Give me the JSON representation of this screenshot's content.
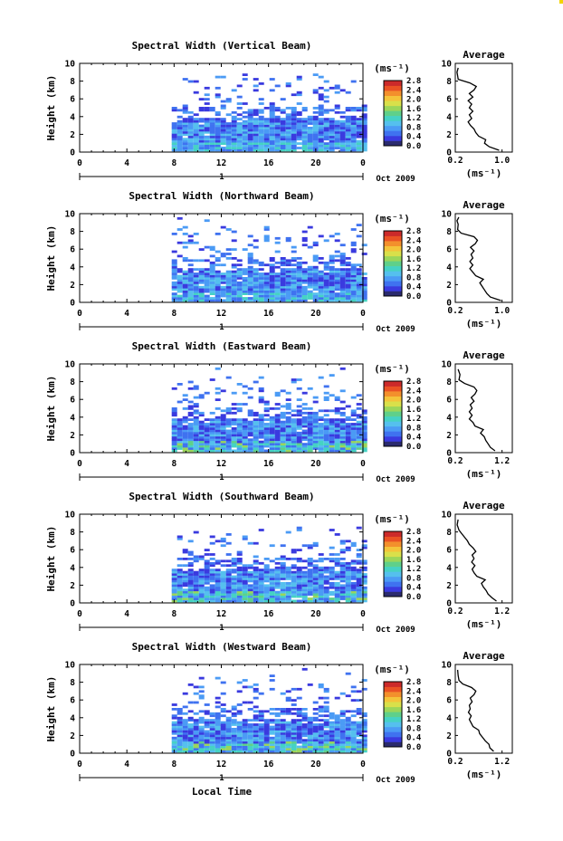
{
  "figure": {
    "xlabel": "Local Time",
    "date_label": "Oct 2009"
  },
  "chart_data": [
    {
      "type": "heatmap",
      "title": "Spectral Width (Vertical Beam)",
      "ylabel": "Height (km)",
      "x_ticks": [
        "0",
        "4",
        "8",
        "12",
        "16",
        "20",
        "0"
      ],
      "y_ticks": [
        "0",
        "2",
        "4",
        "6",
        "8",
        "10"
      ],
      "xlim": [
        0,
        24
      ],
      "ylim": [
        0,
        10
      ],
      "day_label": "1",
      "colorbar": {
        "unit": "(ms⁻¹)",
        "ticks": [
          "0.0",
          "0.4",
          "0.8",
          "1.2",
          "1.6",
          "2.0",
          "2.4",
          "2.8"
        ]
      },
      "average_profile": {
        "title": "Average",
        "xlabel": "(ms⁻¹)",
        "x_ticks": [
          "0.2",
          "1.0"
        ],
        "xlim": [
          0.2,
          1.0
        ],
        "x_tick_values": [
          0.2,
          1.0
        ],
        "y_ticks": [
          "0",
          "2",
          "4",
          "6",
          "8",
          "10"
        ],
        "ylim": [
          0,
          10
        ],
        "points": [
          [
            0.95,
            0.2
          ],
          [
            0.78,
            0.6
          ],
          [
            0.7,
            1.0
          ],
          [
            0.72,
            1.4
          ],
          [
            0.6,
            1.8
          ],
          [
            0.55,
            2.2
          ],
          [
            0.52,
            2.6
          ],
          [
            0.46,
            3.0
          ],
          [
            0.42,
            3.4
          ],
          [
            0.48,
            3.8
          ],
          [
            0.44,
            4.2
          ],
          [
            0.5,
            4.6
          ],
          [
            0.44,
            5.0
          ],
          [
            0.48,
            5.4
          ],
          [
            0.42,
            5.8
          ],
          [
            0.5,
            6.2
          ],
          [
            0.44,
            6.6
          ],
          [
            0.52,
            7.0
          ],
          [
            0.56,
            7.4
          ],
          [
            0.45,
            7.8
          ],
          [
            0.25,
            8.2
          ],
          [
            0.24,
            8.6
          ],
          [
            0.23,
            9.0
          ],
          [
            0.25,
            9.5
          ]
        ]
      }
    },
    {
      "type": "heatmap",
      "title": "Spectral Width (Northward Beam)",
      "ylabel": "Height (km)",
      "x_ticks": [
        "0",
        "4",
        "8",
        "12",
        "16",
        "20",
        "0"
      ],
      "y_ticks": [
        "0",
        "2",
        "4",
        "6",
        "8",
        "10"
      ],
      "xlim": [
        0,
        24
      ],
      "ylim": [
        0,
        10
      ],
      "day_label": "1",
      "colorbar": {
        "unit": "(ms⁻¹)",
        "ticks": [
          "0.0",
          "0.4",
          "0.8",
          "1.2",
          "1.6",
          "2.0",
          "2.4",
          "2.8"
        ]
      },
      "average_profile": {
        "title": "Average",
        "xlabel": "(ms⁻¹)",
        "x_ticks": [
          "0.2",
          "1.0"
        ],
        "xlim": [
          0.2,
          1.0
        ],
        "x_tick_values": [
          0.2,
          1.0
        ],
        "y_ticks": [
          "0",
          "2",
          "4",
          "6",
          "8",
          "10"
        ],
        "ylim": [
          0,
          10
        ],
        "points": [
          [
            0.98,
            0.2
          ],
          [
            0.8,
            0.6
          ],
          [
            0.74,
            1.0
          ],
          [
            0.7,
            1.4
          ],
          [
            0.66,
            1.8
          ],
          [
            0.62,
            2.2
          ],
          [
            0.68,
            2.6
          ],
          [
            0.55,
            3.0
          ],
          [
            0.5,
            3.4
          ],
          [
            0.45,
            3.8
          ],
          [
            0.5,
            4.2
          ],
          [
            0.45,
            4.6
          ],
          [
            0.5,
            5.0
          ],
          [
            0.47,
            5.4
          ],
          [
            0.52,
            5.8
          ],
          [
            0.46,
            6.2
          ],
          [
            0.54,
            6.6
          ],
          [
            0.58,
            7.0
          ],
          [
            0.52,
            7.4
          ],
          [
            0.3,
            7.8
          ],
          [
            0.24,
            8.2
          ],
          [
            0.25,
            8.8
          ],
          [
            0.23,
            9.2
          ],
          [
            0.26,
            9.6
          ]
        ]
      }
    },
    {
      "type": "heatmap",
      "title": "Spectral Width (Eastward Beam)",
      "ylabel": "Height (km)",
      "x_ticks": [
        "0",
        "4",
        "8",
        "12",
        "16",
        "20",
        "0"
      ],
      "y_ticks": [
        "0",
        "2",
        "4",
        "6",
        "8",
        "10"
      ],
      "xlim": [
        0,
        24
      ],
      "ylim": [
        0,
        10
      ],
      "day_label": "1",
      "colorbar": {
        "unit": "(ms⁻¹)",
        "ticks": [
          "0.0",
          "0.4",
          "0.8",
          "1.2",
          "1.6",
          "2.0",
          "2.4",
          "2.8"
        ]
      },
      "average_profile": {
        "title": "Average",
        "xlabel": "(ms⁻¹)",
        "x_ticks": [
          "0.2",
          "1.2"
        ],
        "xlim": [
          0.2,
          1.2
        ],
        "x_tick_values": [
          0.2,
          1.2
        ],
        "y_ticks": [
          "0",
          "2",
          "4",
          "6",
          "8",
          "10"
        ],
        "ylim": [
          0,
          10
        ],
        "points": [
          [
            1.05,
            0.2
          ],
          [
            0.95,
            0.6
          ],
          [
            0.9,
            1.0
          ],
          [
            0.85,
            1.4
          ],
          [
            0.82,
            1.8
          ],
          [
            0.74,
            2.2
          ],
          [
            0.8,
            2.6
          ],
          [
            0.62,
            3.0
          ],
          [
            0.58,
            3.4
          ],
          [
            0.5,
            3.8
          ],
          [
            0.56,
            4.2
          ],
          [
            0.5,
            4.6
          ],
          [
            0.56,
            5.0
          ],
          [
            0.52,
            5.4
          ],
          [
            0.6,
            5.8
          ],
          [
            0.54,
            6.2
          ],
          [
            0.62,
            6.6
          ],
          [
            0.66,
            7.0
          ],
          [
            0.6,
            7.4
          ],
          [
            0.4,
            7.8
          ],
          [
            0.28,
            8.2
          ],
          [
            0.3,
            8.8
          ],
          [
            0.26,
            9.4
          ]
        ]
      }
    },
    {
      "type": "heatmap",
      "title": "Spectral Width (Southward Beam)",
      "ylabel": "Height (km)",
      "x_ticks": [
        "0",
        "4",
        "8",
        "12",
        "16",
        "20",
        "0"
      ],
      "y_ticks": [
        "0",
        "2",
        "4",
        "6",
        "8",
        "10"
      ],
      "xlim": [
        0,
        24
      ],
      "ylim": [
        0,
        10
      ],
      "day_label": "1",
      "colorbar": {
        "unit": "(ms⁻¹)",
        "ticks": [
          "0.0",
          "0.4",
          "0.8",
          "1.2",
          "1.6",
          "2.0",
          "2.4",
          "2.8"
        ]
      },
      "average_profile": {
        "title": "Average",
        "xlabel": "(ms⁻¹)",
        "x_ticks": [
          "0.2",
          "1.2"
        ],
        "xlim": [
          0.2,
          1.2
        ],
        "x_tick_values": [
          0.2,
          1.2
        ],
        "y_ticks": [
          "0",
          "2",
          "4",
          "6",
          "8",
          "10"
        ],
        "ylim": [
          0,
          10
        ],
        "points": [
          [
            1.08,
            0.2
          ],
          [
            0.98,
            0.6
          ],
          [
            0.9,
            1.0
          ],
          [
            0.86,
            1.4
          ],
          [
            0.8,
            1.8
          ],
          [
            0.76,
            2.2
          ],
          [
            0.84,
            2.6
          ],
          [
            0.66,
            3.0
          ],
          [
            0.6,
            3.4
          ],
          [
            0.56,
            3.8
          ],
          [
            0.62,
            4.2
          ],
          [
            0.55,
            4.6
          ],
          [
            0.6,
            5.0
          ],
          [
            0.56,
            5.4
          ],
          [
            0.64,
            5.8
          ],
          [
            0.58,
            6.2
          ],
          [
            0.5,
            6.6
          ],
          [
            0.46,
            7.0
          ],
          [
            0.4,
            7.4
          ],
          [
            0.34,
            7.8
          ],
          [
            0.28,
            8.2
          ],
          [
            0.24,
            8.8
          ],
          [
            0.26,
            9.4
          ]
        ]
      }
    },
    {
      "type": "heatmap",
      "title": "Spectral Width (Westward Beam)",
      "ylabel": "Height (km)",
      "x_ticks": [
        "0",
        "4",
        "8",
        "12",
        "16",
        "20",
        "0"
      ],
      "y_ticks": [
        "0",
        "2",
        "4",
        "6",
        "8",
        "10"
      ],
      "xlim": [
        0,
        24
      ],
      "ylim": [
        0,
        10
      ],
      "day_label": "1",
      "colorbar": {
        "unit": "(ms⁻¹)",
        "ticks": [
          "0.0",
          "0.4",
          "0.8",
          "1.2",
          "1.6",
          "2.0",
          "2.4",
          "2.8"
        ]
      },
      "average_profile": {
        "title": "Average",
        "xlabel": "(ms⁻¹)",
        "x_ticks": [
          "0.2",
          "1.2"
        ],
        "xlim": [
          0.2,
          1.2
        ],
        "x_tick_values": [
          0.2,
          1.2
        ],
        "y_ticks": [
          "0",
          "2",
          "4",
          "6",
          "8",
          "10"
        ],
        "ylim": [
          0,
          10
        ],
        "points": [
          [
            1.02,
            0.2
          ],
          [
            0.94,
            0.6
          ],
          [
            0.92,
            1.0
          ],
          [
            0.84,
            1.4
          ],
          [
            0.78,
            1.8
          ],
          [
            0.72,
            2.2
          ],
          [
            0.7,
            2.6
          ],
          [
            0.58,
            3.0
          ],
          [
            0.54,
            3.4
          ],
          [
            0.5,
            3.8
          ],
          [
            0.54,
            4.2
          ],
          [
            0.48,
            4.6
          ],
          [
            0.52,
            5.0
          ],
          [
            0.5,
            5.4
          ],
          [
            0.56,
            5.8
          ],
          [
            0.52,
            6.2
          ],
          [
            0.6,
            6.6
          ],
          [
            0.64,
            7.0
          ],
          [
            0.55,
            7.4
          ],
          [
            0.36,
            7.8
          ],
          [
            0.28,
            8.2
          ],
          [
            0.26,
            8.8
          ],
          [
            0.25,
            9.4
          ]
        ]
      }
    }
  ],
  "colors": {
    "scale": [
      "#2b2b6e",
      "#3a3adf",
      "#3f72f0",
      "#4b9bf5",
      "#55c0ee",
      "#45d2c4",
      "#5fd08a",
      "#9bd65a",
      "#d9e04a",
      "#f4c43a",
      "#f3902c",
      "#ea5224",
      "#cc2a2a"
    ]
  }
}
